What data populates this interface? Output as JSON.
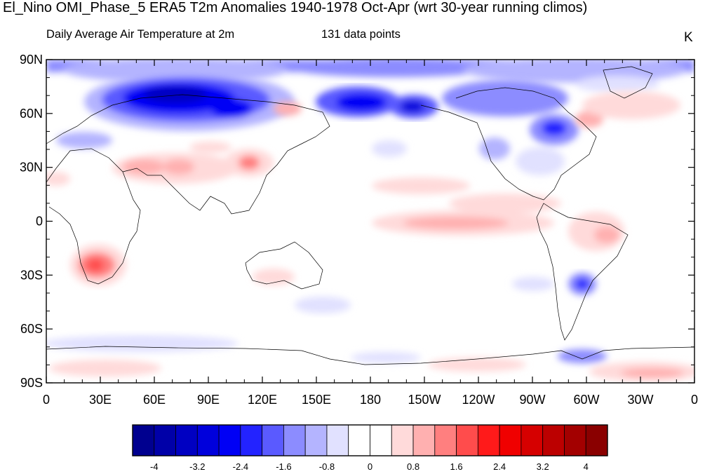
{
  "title": "El_Nino OMI_Phase_5 ERA5 T2m Anomalies 1940-1978 Oct-Apr (wrt 30-year running climos)",
  "subtitle_left": "Daily Average Air Temperature at 2m",
  "subtitle_center": "131 data points",
  "units": "K",
  "lat_labels": [
    "90N",
    "60N",
    "30N",
    "0",
    "30S",
    "60S",
    "90S"
  ],
  "lon_labels": [
    "0",
    "30E",
    "60E",
    "90E",
    "120E",
    "150E",
    "180",
    "150W",
    "120W",
    "90W",
    "60W",
    "30W",
    "0"
  ],
  "colorbar": {
    "labels": [
      "-4",
      "-3.2",
      "-2.4",
      "-1.6",
      "-0.8",
      "0",
      "0.8",
      "1.6",
      "2.4",
      "3.2",
      "4"
    ],
    "colors": [
      "#00008f",
      "#0000a8",
      "#0000c2",
      "#0000dc",
      "#0000f5",
      "#2323ff",
      "#5a5aff",
      "#8c8cff",
      "#b4b4ff",
      "#e1e1ff",
      "#ffffff",
      "#ffffff",
      "#ffdada",
      "#ffb0b0",
      "#ff7f7f",
      "#ff4c4c",
      "#ff1a1a",
      "#f00000",
      "#d60000",
      "#bc0000",
      "#a30000",
      "#8a0000"
    ]
  },
  "colors": {
    "cold": "#3232ff",
    "warm": "#ff6a6a",
    "coast": "#000000"
  }
}
